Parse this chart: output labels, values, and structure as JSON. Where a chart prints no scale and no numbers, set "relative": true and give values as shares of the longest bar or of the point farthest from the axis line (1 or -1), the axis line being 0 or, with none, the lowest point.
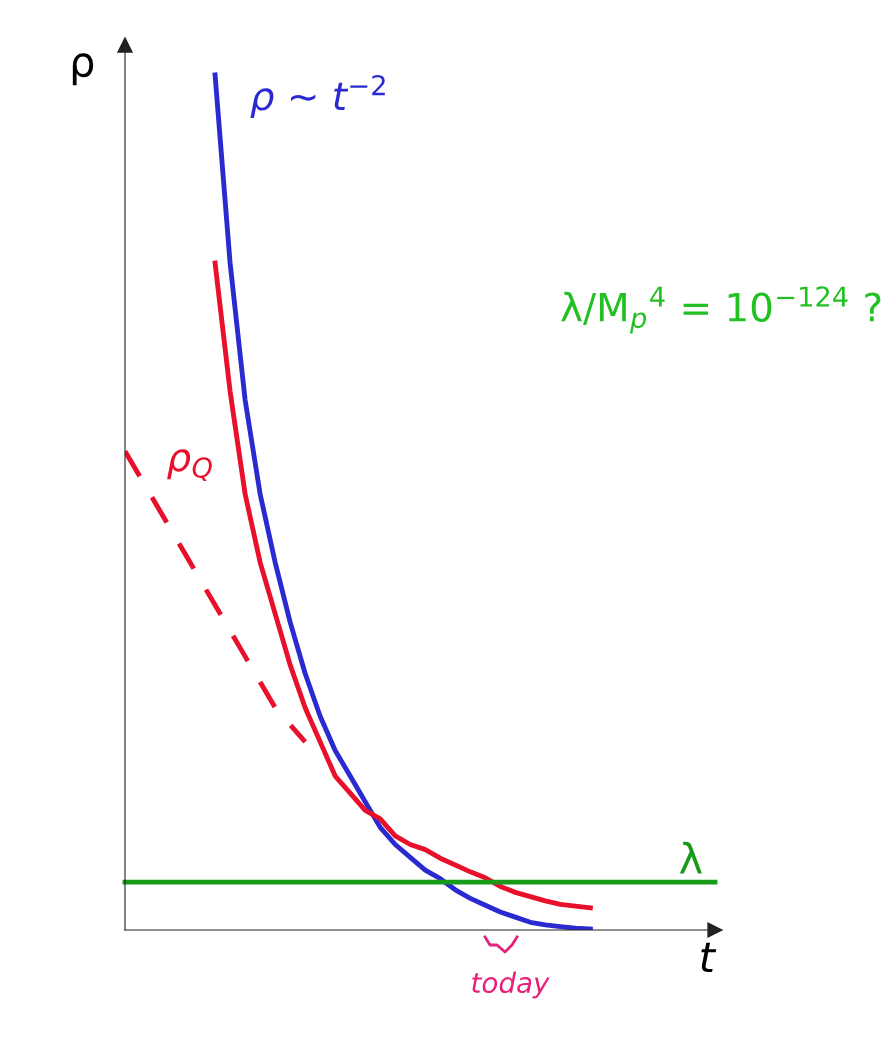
{
  "chart_data": {
    "type": "line",
    "relative": true,
    "xlabel": "t",
    "ylabel": "ρ",
    "categories": [
      null,
      null,
      null,
      null,
      null,
      null,
      null,
      null,
      null,
      null,
      null,
      null,
      null,
      null,
      null,
      null,
      null,
      null,
      null,
      null,
      null,
      null,
      null,
      null,
      null,
      null,
      null,
      null,
      null,
      null,
      null,
      null,
      null,
      null,
      null,
      null,
      null,
      null,
      null,
      null
    ],
    "series": [
      {
        "name": "ρ ~ t$^{−2}$",
        "color": "#2a2ad0",
        "values": [
          null,
          null,
          null,
          null,
          null,
          null,
          1.0,
          0.78,
          0.62,
          0.51,
          0.43,
          0.36,
          0.3,
          0.25,
          0.21,
          0.18,
          0.15,
          0.12,
          0.1,
          0.085,
          0.07,
          0.06,
          0.047,
          0.037,
          0.029,
          0.021,
          0.015,
          0.009,
          0.006,
          0.004,
          0.002,
          0.001,
          null,
          null,
          null,
          null,
          null,
          null,
          null,
          null
        ]
      },
      {
        "name": "ρ$_{Q}$",
        "color": "#e8102a",
        "values": [
          null,
          null,
          null,
          null,
          null,
          null,
          0.78,
          0.63,
          0.51,
          0.43,
          0.37,
          0.31,
          0.26,
          0.22,
          0.18,
          0.16,
          0.14,
          0.13,
          0.11,
          0.1,
          0.094,
          0.084,
          0.076,
          0.068,
          0.061,
          0.051,
          0.044,
          0.039,
          0.034,
          0.03,
          0.028,
          0.026,
          null,
          null,
          null,
          null,
          null,
          null,
          null,
          null
        ]
      },
      {
        "color": "#e8102a",
        "line_style": "dashed",
        "values": [
          0.56,
          0.53,
          0.5,
          0.47,
          0.44,
          0.41,
          0.38,
          0.35,
          0.32,
          0.29,
          0.26,
          0.24,
          0.22,
          null,
          null,
          null,
          null,
          null,
          null,
          null,
          null,
          null,
          null,
          null,
          null,
          null,
          null,
          null,
          null,
          null,
          null,
          null,
          null,
          null,
          null,
          null,
          null,
          null,
          null,
          null
        ]
      }
    ],
    "ref_lines": [
      {
        "axis": "y",
        "value": 0.056,
        "label": "λ",
        "color": "#1a9a1a"
      }
    ],
    "annotations": [
      "λ/M$_{p}$$^{4}$ = 10$^{−124}$ ?",
      {
        "text": "today"
      }
    ],
    "legend": false,
    "grid": false
  }
}
